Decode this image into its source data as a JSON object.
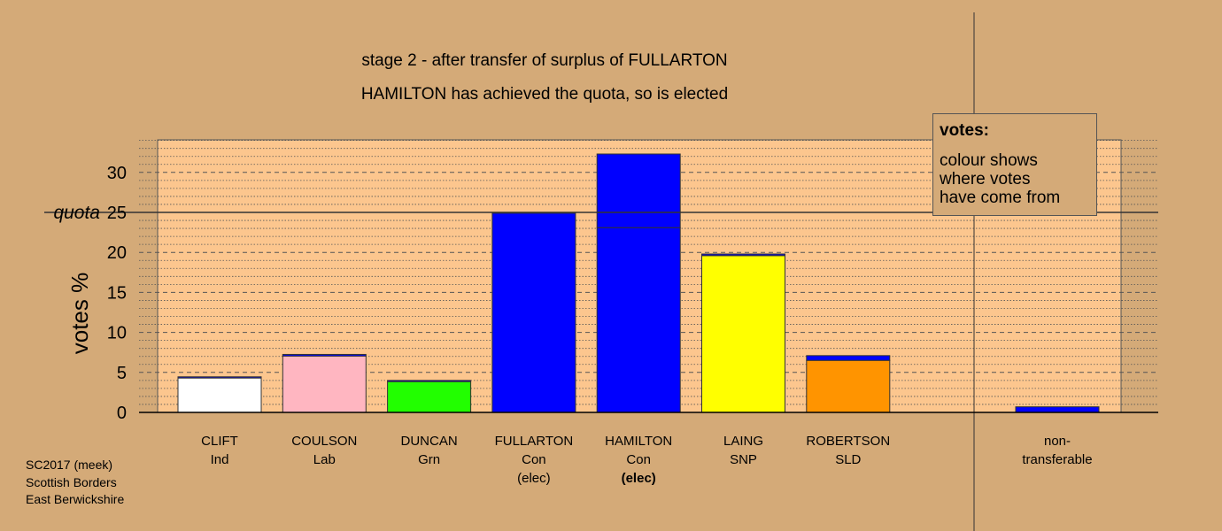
{
  "chart_data": {
    "type": "bar",
    "title": "stage 2 - after transfer of surplus of FULLARTON",
    "subtitle": "HAMILTON has achieved the quota, so is elected",
    "ylabel": "votes %",
    "ylim": [
      0,
      34
    ],
    "yticks": [
      0,
      5,
      10,
      15,
      20,
      25,
      30
    ],
    "quota": 25,
    "quota_label": "quota",
    "grid": true,
    "categories": [
      {
        "name": "CLIFT",
        "party": "Ind",
        "status": ""
      },
      {
        "name": "COULSON",
        "party": "Lab",
        "status": ""
      },
      {
        "name": "DUNCAN",
        "party": "Grn",
        "status": ""
      },
      {
        "name": "FULLARTON",
        "party": "Con",
        "status": "(elec)"
      },
      {
        "name": "HAMILTON",
        "party": "Con",
        "status": "(elec)"
      },
      {
        "name": "LAING",
        "party": "SNP",
        "status": ""
      },
      {
        "name": "ROBERTSON",
        "party": "SLD",
        "status": ""
      }
    ],
    "bars": [
      {
        "segments": [
          {
            "value": 4.3,
            "color": "#ffffff"
          },
          {
            "value": 0.15,
            "color": "#0000ff"
          }
        ]
      },
      {
        "segments": [
          {
            "value": 7.05,
            "color": "#ffb6c1"
          },
          {
            "value": 0.2,
            "color": "#0000ff"
          }
        ]
      },
      {
        "segments": [
          {
            "value": 3.85,
            "color": "#22ff00"
          },
          {
            "value": 0.15,
            "color": "#0000ff"
          }
        ]
      },
      {
        "segments": [
          {
            "value": 24.9,
            "color": "#0000ff"
          }
        ]
      },
      {
        "segments": [
          {
            "value": 23.1,
            "color": "#0000ff"
          },
          {
            "value": 9.2,
            "color": "#0000ff"
          }
        ]
      },
      {
        "segments": [
          {
            "value": 19.6,
            "color": "#ffff00"
          },
          {
            "value": 0.2,
            "color": "#0000ff"
          }
        ]
      },
      {
        "segments": [
          {
            "value": 6.5,
            "color": "#ff9400"
          },
          {
            "value": 0.6,
            "color": "#0000ff"
          }
        ]
      }
    ],
    "nontransferable": {
      "label_line1": "non-",
      "label_line2": "transferable",
      "value": 0.7,
      "color": "#0000ff"
    },
    "legend_placement": "top-right"
  },
  "legend": {
    "title": "votes:",
    "text": "colour shows\nwhere votes\nhave come from"
  },
  "footer": {
    "line1": "SC2017 (meek)",
    "line2": "Scottish Borders",
    "line3": "East Berwickshire"
  },
  "colors": {
    "background": "#d4aa78",
    "plot_area": "#fcc68e",
    "bar_outline": "#333333"
  }
}
